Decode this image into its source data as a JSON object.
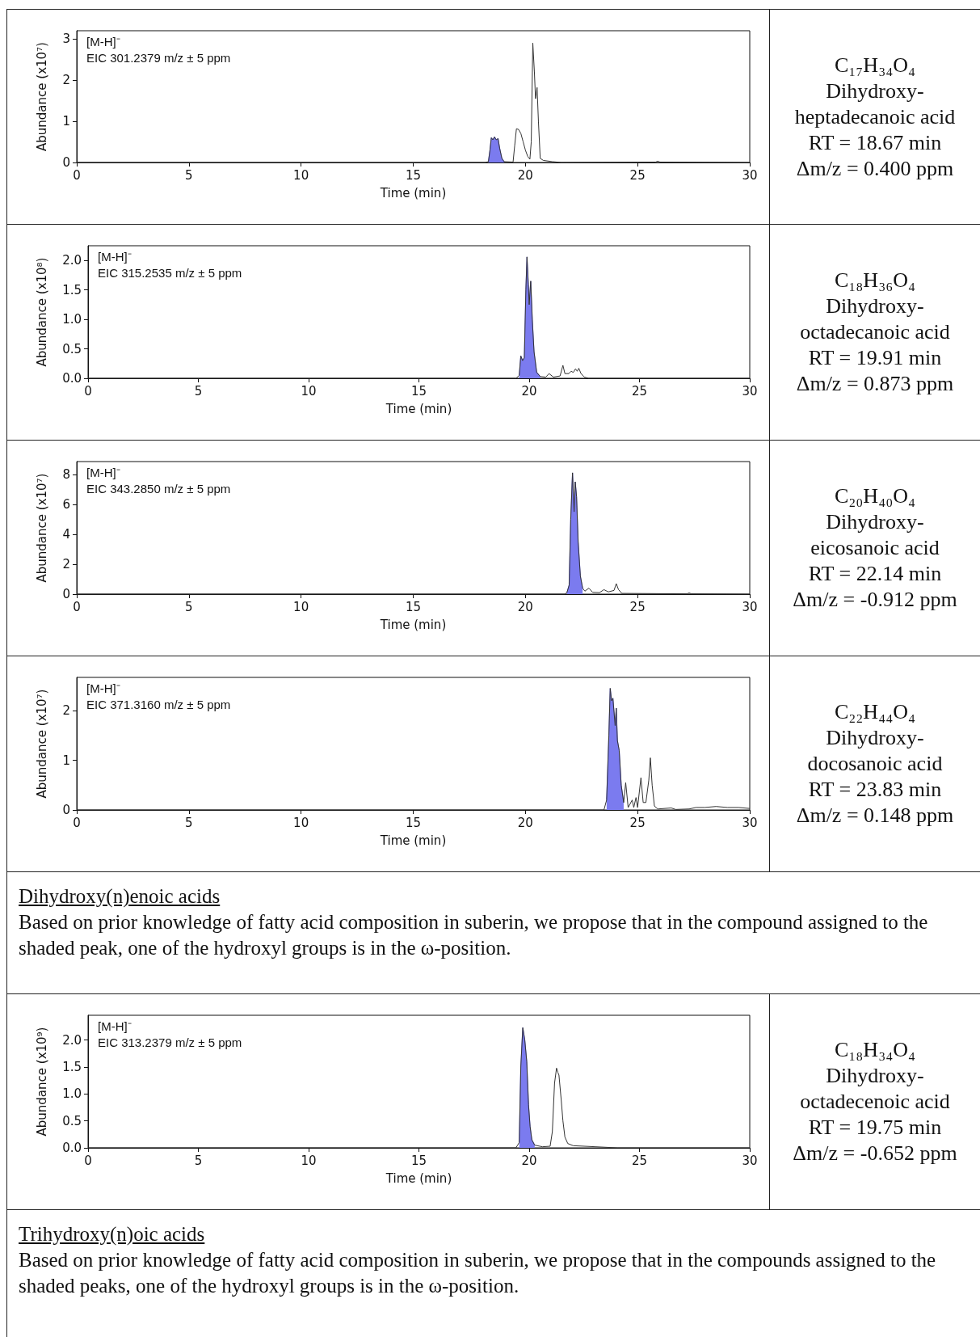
{
  "chart_data": [
    {
      "type": "line",
      "xlabel": "Time (min)",
      "ylabel": "Abundance (x10⁷)",
      "xlim": [
        0,
        30
      ],
      "xticks": [
        0,
        5,
        10,
        15,
        20,
        25,
        30
      ],
      "ylim": [
        0,
        3.2
      ],
      "yticks": [
        0,
        1,
        2,
        3
      ],
      "annotations": [
        "[M-H]⁻",
        "EIC 301.2379 m/z ± 5 ppm",
        "C₁₇H₃₄O₄",
        "Dihydroxy-",
        "heptadecanoic acid",
        "RT = 18.67 min",
        "Δm/z = 0.400 ppm"
      ],
      "series": [
        {
          "type": "area",
          "color": "#7b7bef",
          "x": [
            18.35,
            18.42,
            18.48,
            18.55,
            18.62,
            18.7,
            18.78,
            18.85,
            18.95,
            19.05
          ],
          "values": [
            0.02,
            0.3,
            0.6,
            0.55,
            0.62,
            0.55,
            0.58,
            0.35,
            0.1,
            0.02
          ]
        },
        {
          "type": "line",
          "color": "#333333",
          "x": [
            0,
            18.2,
            18.35,
            18.42,
            18.48,
            18.55,
            18.62,
            18.7,
            18.78,
            18.85,
            18.95,
            19.05,
            19.45,
            19.52,
            19.6,
            19.7,
            19.8,
            19.9,
            20.0,
            20.1,
            20.2,
            20.26,
            20.33,
            20.4,
            20.45,
            20.52,
            20.58,
            20.66,
            20.8,
            21.2,
            21.6,
            25.8,
            25.9,
            26.0,
            30
          ],
          "values": [
            0,
            0,
            0.02,
            0.3,
            0.6,
            0.55,
            0.62,
            0.55,
            0.58,
            0.35,
            0.1,
            0.02,
            0.01,
            0.4,
            0.82,
            0.8,
            0.7,
            0.5,
            0.3,
            0.15,
            0.08,
            0.5,
            2.9,
            2.2,
            1.55,
            1.82,
            1.0,
            0.1,
            0.05,
            0.02,
            0,
            0.01,
            0.03,
            0.01,
            0
          ]
        }
      ]
    },
    {
      "type": "line",
      "xlabel": "Time (min)",
      "ylabel": "Abundance (x10⁸)",
      "xlim": [
        0,
        30
      ],
      "xticks": [
        0,
        5,
        10,
        15,
        20,
        25,
        30
      ],
      "ylim": [
        0,
        2.25
      ],
      "yticks": [
        {
          "value": 0,
          "label": "0.0"
        },
        0.5,
        {
          "value": 1,
          "label": "1.0"
        },
        1.5,
        {
          "value": 2,
          "label": "2.0"
        }
      ],
      "annotations": [
        "[M-H]⁻",
        "EIC 315.2535 m/z ± 5 ppm",
        "C₁₈H₃₆O₄",
        "Dihydroxy-",
        "octadecanoic acid",
        "RT = 19.91 min",
        "Δm/z = 0.873 ppm"
      ],
      "series": [
        {
          "type": "area",
          "color": "#7b7bef",
          "x": [
            19.55,
            19.62,
            19.7,
            19.78,
            19.85,
            19.9,
            19.96,
            20.0,
            20.07,
            20.14,
            20.22,
            20.34,
            20.5
          ],
          "values": [
            0.05,
            0.38,
            0.3,
            0.35,
            1.5,
            2.06,
            1.6,
            1.25,
            1.65,
            1.0,
            0.45,
            0.1,
            0.03
          ]
        },
        {
          "type": "line",
          "color": "#333333",
          "x": [
            0,
            19.4,
            19.55,
            19.62,
            19.7,
            19.78,
            19.85,
            19.9,
            19.96,
            20.0,
            20.07,
            20.14,
            20.22,
            20.34,
            20.5,
            20.75,
            20.9,
            21.1,
            21.4,
            21.53,
            21.62,
            21.8,
            21.9,
            22.0,
            22.1,
            22.18,
            22.25,
            22.35,
            22.5,
            22.7,
            30
          ],
          "values": [
            0,
            0,
            0.05,
            0.38,
            0.3,
            0.35,
            1.5,
            2.06,
            1.6,
            1.25,
            1.65,
            1.0,
            0.45,
            0.1,
            0.03,
            0.02,
            0.08,
            0.02,
            0.04,
            0.22,
            0.08,
            0.08,
            0.12,
            0.1,
            0.16,
            0.12,
            0.17,
            0.08,
            0.02,
            0,
            0
          ]
        }
      ]
    },
    {
      "type": "line",
      "xlabel": "Time (min)",
      "ylabel": "Abundance (x10⁷)",
      "xlim": [
        0,
        30
      ],
      "xticks": [
        0,
        5,
        10,
        15,
        20,
        25,
        30
      ],
      "ylim": [
        0,
        8.85
      ],
      "yticks": [
        0,
        2,
        4,
        6,
        8
      ],
      "annotations": [
        "[M-H]⁻",
        "EIC 343.2850 m/z ± 5 ppm",
        "C₂₀H₄₀O₄",
        "Dihydroxy-",
        "eicosanoic acid",
        "RT = 22.14 min",
        "Δm/z = -0.912 ppm"
      ],
      "series": [
        {
          "type": "area",
          "color": "#7b7bef",
          "x": [
            21.85,
            21.95,
            22.02,
            22.1,
            22.17,
            22.22,
            22.28,
            22.35,
            22.45,
            22.55
          ],
          "values": [
            0.1,
            0.6,
            5,
            8.1,
            5.5,
            7.5,
            6.5,
            3.5,
            1.2,
            0.4
          ]
        },
        {
          "type": "line",
          "color": "#333333",
          "x": [
            0,
            21.75,
            21.85,
            21.95,
            22.02,
            22.1,
            22.17,
            22.22,
            22.28,
            22.35,
            22.45,
            22.55,
            22.65,
            22.83,
            23.0,
            23.3,
            23.5,
            23.7,
            23.95,
            24.05,
            24.15,
            24.3,
            27.2,
            27.3,
            27.4,
            30
          ],
          "values": [
            0,
            0,
            0.1,
            0.6,
            5,
            8.1,
            5.5,
            7.5,
            6.5,
            3.5,
            1.2,
            0.4,
            0.2,
            0.4,
            0.12,
            0.1,
            0.3,
            0.15,
            0.25,
            0.7,
            0.3,
            0.05,
            0.02,
            0.08,
            0.02,
            0
          ]
        }
      ]
    },
    {
      "type": "line",
      "xlabel": "Time (min)",
      "ylabel": "Abundance (x10⁷)",
      "xlim": [
        0,
        30
      ],
      "xticks": [
        0,
        5,
        10,
        15,
        20,
        25,
        30
      ],
      "ylim": [
        0,
        2.67
      ],
      "yticks": [
        0,
        1,
        2
      ],
      "annotations": [
        "[M-H]⁻",
        "EIC 371.3160 m/z ± 5 ppm",
        "C₂₂H₄₄O₄",
        "Dihydroxy-",
        "docosanoic acid",
        "RT = 23.83 min",
        "Δm/z = 0.148 ppm"
      ],
      "series": [
        {
          "type": "area",
          "color": "#7b7bef",
          "x": [
            23.62,
            23.72,
            23.78,
            23.84,
            23.9,
            24.0,
            24.05,
            24.1,
            24.18,
            24.27,
            24.38
          ],
          "values": [
            0.2,
            1.5,
            2.45,
            2.2,
            2.25,
            1.7,
            2.05,
            1.4,
            1.2,
            0.5,
            0.15
          ]
        },
        {
          "type": "line",
          "color": "#333333",
          "x": [
            0,
            23.5,
            23.62,
            23.72,
            23.78,
            23.84,
            23.9,
            24.0,
            24.05,
            24.1,
            24.18,
            24.27,
            24.38,
            24.47,
            24.58,
            24.76,
            24.83,
            24.93,
            25.0,
            25.15,
            25.25,
            25.37,
            25.5,
            25.57,
            25.65,
            25.75,
            25.9,
            26.5,
            26.7,
            27.3,
            27.6,
            28.0,
            28.5,
            29.0,
            29.5,
            30
          ],
          "values": [
            0,
            0,
            0.2,
            1.5,
            2.45,
            2.2,
            2.25,
            1.7,
            2.05,
            1.4,
            1.2,
            0.5,
            0.15,
            0.55,
            0.05,
            0.2,
            0.05,
            0.25,
            0.05,
            0.65,
            0.15,
            0.15,
            0.6,
            1.05,
            0.5,
            0.08,
            0.02,
            0.04,
            0.01,
            0.02,
            0.05,
            0.05,
            0.07,
            0.05,
            0.05,
            0.03
          ]
        }
      ]
    },
    {
      "type": "other",
      "title": "Dihydroxy(n)enoic acids",
      "annotations": [
        "Based on prior knowledge of fatty acid composition in suberin, we propose that in the compound assigned to the shaded peak, one of the hydroxyl groups is in the ω-position."
      ]
    },
    {
      "type": "line",
      "xlabel": "Time (min)",
      "ylabel": "Abundance (x10⁹)",
      "xlim": [
        0,
        30
      ],
      "xticks": [
        0,
        5,
        10,
        15,
        20,
        25,
        30
      ],
      "ylim": [
        0,
        2.46
      ],
      "yticks": [
        {
          "value": 0,
          "label": "0.0"
        },
        0.5,
        {
          "value": 1,
          "label": "1.0"
        },
        1.5,
        {
          "value": 2,
          "label": "2.0"
        }
      ],
      "annotations": [
        "[M-H]⁻",
        "EIC 313.2379 m/z ± 5 ppm",
        "C₁₈H₃₄O₄",
        "Dihydroxy-",
        "octadecenoic acid",
        "RT = 19.75 min",
        "Δm/z = -0.652 ppm"
      ],
      "series": [
        {
          "type": "area",
          "color": "#7b7bef",
          "x": [
            19.55,
            19.62,
            19.71,
            19.8,
            19.89,
            19.97,
            20.04,
            20.12,
            20.25
          ],
          "values": [
            0.1,
            1.5,
            2.23,
            2.0,
            1.6,
            0.8,
            0.4,
            0.15,
            0.05
          ]
        },
        {
          "type": "line",
          "color": "#333333",
          "x": [
            0,
            19.4,
            19.55,
            19.62,
            19.71,
            19.8,
            19.89,
            19.97,
            20.04,
            20.12,
            20.25,
            20.6,
            20.95,
            21.05,
            21.15,
            21.24,
            21.3,
            21.35,
            21.45,
            21.53,
            21.62,
            21.75,
            22.0,
            23.0,
            24.0,
            30
          ],
          "values": [
            0,
            0,
            0.1,
            1.5,
            2.23,
            2.0,
            1.6,
            0.8,
            0.4,
            0.15,
            0.05,
            0.02,
            0.03,
            0.3,
            1.2,
            1.48,
            1.4,
            1.35,
            0.9,
            0.5,
            0.2,
            0.08,
            0.04,
            0.02,
            0,
            0
          ]
        }
      ]
    },
    {
      "type": "other",
      "title": "Trihydroxy(n)oic acids",
      "annotations": [
        "Based on prior knowledge of fatty acid composition in suberin, we propose that in the compounds assigned to the shaded peaks, one of the hydroxyl groups is in the ω-position."
      ]
    }
  ]
}
